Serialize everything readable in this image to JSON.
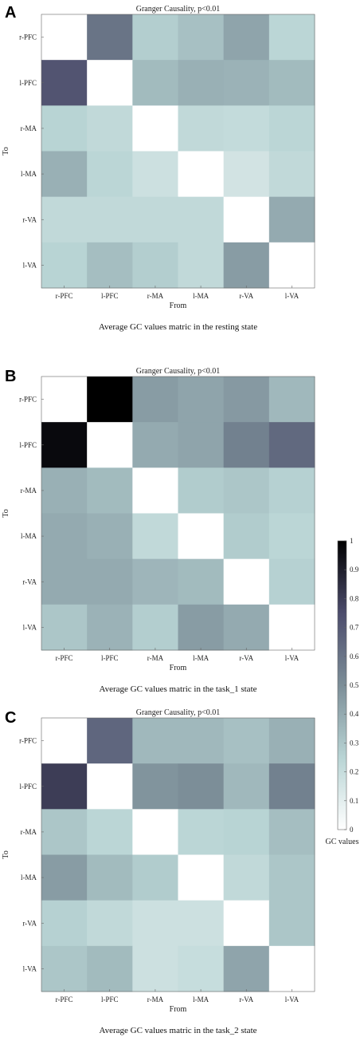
{
  "chart_data": [
    {
      "type": "heatmap",
      "panel_label": "A",
      "title": "Granger Causality, p<0.01",
      "xlabel": "From",
      "ylabel": "To",
      "x_categories": [
        "r-PFC",
        "l-PFC",
        "r-MA",
        "l-MA",
        "r-VA",
        "l-VA"
      ],
      "y_categories": [
        "r-PFC",
        "l-PFC",
        "r-MA",
        "l-MA",
        "r-VA",
        "l-VA"
      ],
      "values": [
        [
          0,
          0.6,
          0.27,
          0.32,
          0.42,
          0.24
        ],
        [
          0.72,
          0,
          0.34,
          0.38,
          0.37,
          0.34
        ],
        [
          0.25,
          0.22,
          0,
          0.22,
          0.21,
          0.24
        ],
        [
          0.38,
          0.24,
          0.18,
          0,
          0.16,
          0.22
        ],
        [
          0.22,
          0.22,
          0.22,
          0.22,
          0,
          0.4
        ],
        [
          0.25,
          0.33,
          0.27,
          0.22,
          0.45,
          0
        ]
      ],
      "caption": "Average GC values matric in the resting state"
    },
    {
      "type": "heatmap",
      "panel_label": "B",
      "title": "Granger Causality, p<0.01",
      "xlabel": "From",
      "ylabel": "To",
      "x_categories": [
        "r-PFC",
        "l-PFC",
        "r-MA",
        "l-MA",
        "r-VA",
        "l-VA"
      ],
      "y_categories": [
        "r-PFC",
        "l-PFC",
        "r-MA",
        "l-MA",
        "r-VA",
        "l-VA"
      ],
      "values": [
        [
          0,
          1.0,
          0.45,
          0.42,
          0.46,
          0.35
        ],
        [
          0.97,
          0,
          0.4,
          0.42,
          0.55,
          0.64
        ],
        [
          0.38,
          0.34,
          0,
          0.28,
          0.3,
          0.26
        ],
        [
          0.4,
          0.38,
          0.22,
          0,
          0.28,
          0.24
        ],
        [
          0.4,
          0.4,
          0.36,
          0.34,
          0,
          0.26
        ],
        [
          0.3,
          0.37,
          0.27,
          0.45,
          0.4,
          0
        ]
      ],
      "caption": "Average GC values matric in the task_1 state"
    },
    {
      "type": "heatmap",
      "panel_label": "C",
      "title": "Granger Causality, p<0.01",
      "xlabel": "From",
      "ylabel": "To",
      "x_categories": [
        "r-PFC",
        "l-PFC",
        "r-MA",
        "l-MA",
        "r-VA",
        "l-VA"
      ],
      "y_categories": [
        "r-PFC",
        "l-PFC",
        "r-MA",
        "l-MA",
        "r-VA",
        "l-VA"
      ],
      "values": [
        [
          0,
          0.65,
          0.35,
          0.35,
          0.32,
          0.38
        ],
        [
          0.8,
          0,
          0.48,
          0.5,
          0.35,
          0.55
        ],
        [
          0.3,
          0.24,
          0,
          0.24,
          0.25,
          0.33
        ],
        [
          0.45,
          0.34,
          0.28,
          0,
          0.22,
          0.3
        ],
        [
          0.26,
          0.22,
          0.18,
          0.18,
          0,
          0.3
        ],
        [
          0.3,
          0.34,
          0.18,
          0.2,
          0.42,
          0
        ]
      ],
      "caption": "Average GC values matric in the task_2 state"
    }
  ],
  "colorbar": {
    "min": 0,
    "max": 1,
    "ticks": [
      "0",
      "0.1",
      "0.2",
      "0.3",
      "0.4",
      "0.5",
      "0.6",
      "0.7",
      "0.8",
      "0.9",
      "1"
    ],
    "label": "GC values",
    "colormap": "bone (reversed)",
    "color_stops": [
      "#ffffff",
      "#b8d4d4",
      "#7c8e98",
      "#4c4c6c",
      "#000000"
    ]
  }
}
